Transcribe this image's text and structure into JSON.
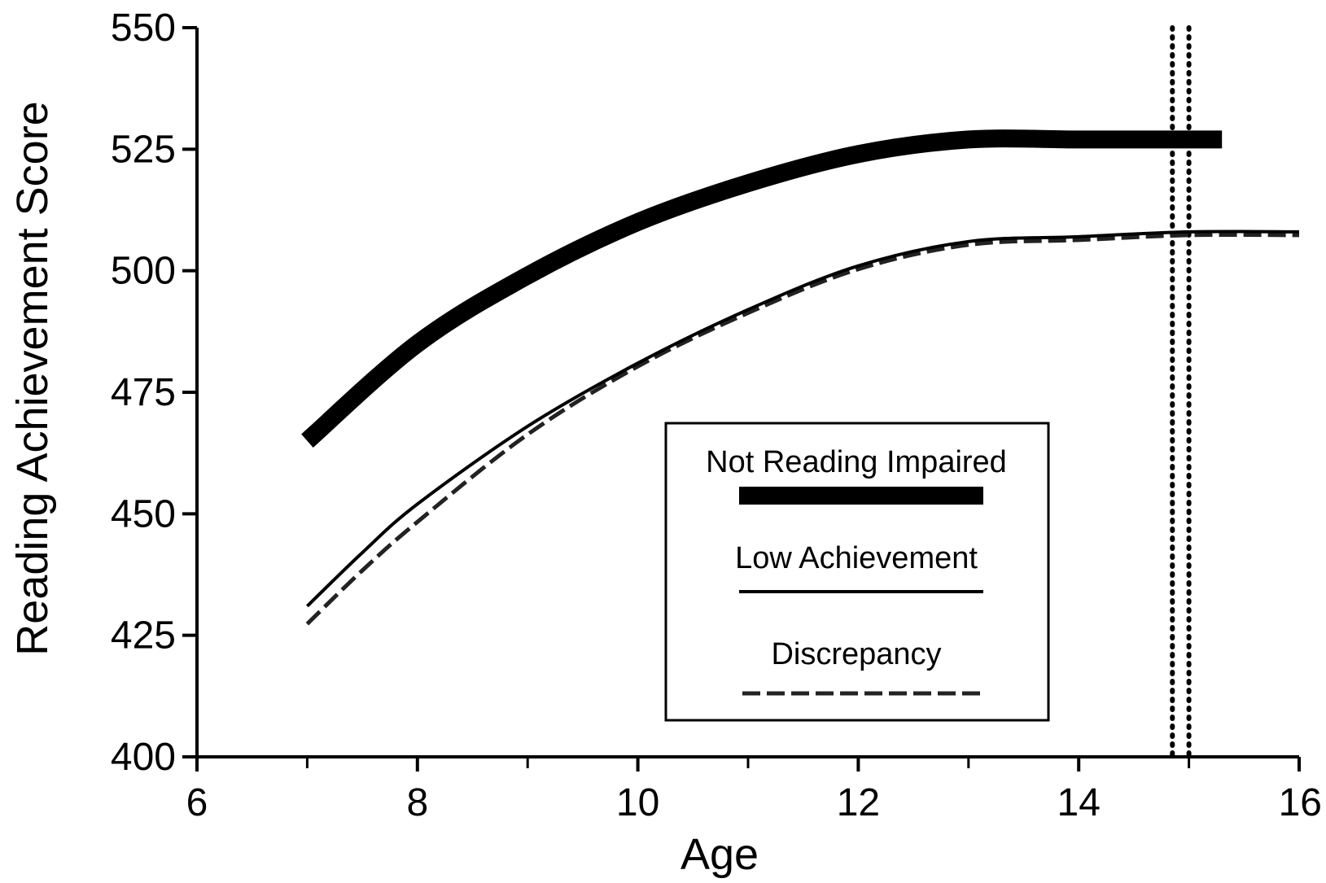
{
  "chart_data": {
    "type": "line",
    "title": "",
    "xlabel": "Age",
    "ylabel": "Reading Achievement Score",
    "xlim": [
      6,
      16
    ],
    "ylim": [
      400,
      550
    ],
    "xticks": [
      6,
      8,
      10,
      12,
      14,
      16
    ],
    "xticks_minor": [
      7,
      9,
      11,
      13,
      15
    ],
    "yticks": [
      400,
      425,
      450,
      475,
      500,
      525,
      550
    ],
    "grid": false,
    "legend": {
      "position": "center-right",
      "boxed": true
    },
    "series": [
      {
        "name": "Not Reading Impaired",
        "style": "thick-solid",
        "color": "#000000",
        "x": [
          7,
          8,
          9,
          10,
          11,
          12,
          13,
          14,
          15,
          15.3
        ],
        "y": [
          465,
          485,
          499,
          510,
          518,
          524,
          527,
          527,
          527,
          527
        ]
      },
      {
        "name": "Low Achievement",
        "style": "thin-solid",
        "color": "#000000",
        "x": [
          7,
          7.5,
          8,
          9,
          10,
          11,
          12,
          13,
          14,
          15,
          16
        ],
        "y": [
          431,
          442,
          452,
          468,
          481,
          492,
          501,
          506,
          507,
          508,
          508
        ]
      },
      {
        "name": "Discrepancy",
        "style": "dashed",
        "color": "#222222",
        "x": [
          7,
          7.5,
          8,
          9,
          10,
          11,
          12,
          13,
          14,
          15,
          16
        ],
        "y": [
          428,
          439,
          449,
          467,
          481,
          492,
          501,
          506,
          507,
          508,
          508
        ]
      }
    ],
    "reference_lines": [
      {
        "axis": "x",
        "value": 14.85,
        "style": "dotted"
      },
      {
        "axis": "x",
        "value": 15.0,
        "style": "dotted"
      }
    ]
  }
}
